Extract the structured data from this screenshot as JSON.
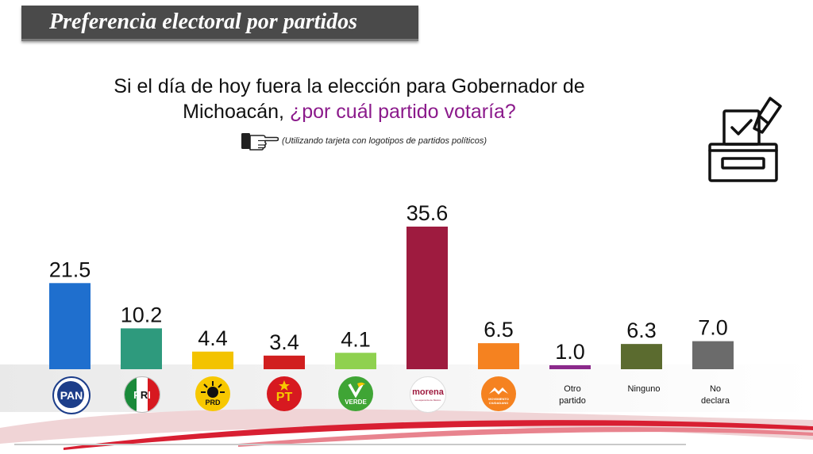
{
  "header": {
    "title": "Preferencia electoral  por partidos"
  },
  "question": {
    "part1": "Si el día de hoy fuera la elección para Gobernador de Michoacán, ",
    "part2": "¿por cuál partido votaría?",
    "note": "(Utilizando tarjeta con logotipos de partidos políticos)"
  },
  "icons": {
    "hand": "pointing-hand-icon",
    "ballot": "ballot-box-icon"
  },
  "chart_data": {
    "type": "bar",
    "categories": [
      "PAN",
      "PRI",
      "PRD",
      "PT",
      "VERDE",
      "morena",
      "MOVIMIENTO CIUDADANO",
      "Otro partido",
      "Ninguno",
      "No declara"
    ],
    "values": [
      21.5,
      10.2,
      4.4,
      3.4,
      4.1,
      35.6,
      6.5,
      1.0,
      6.3,
      7.0
    ],
    "value_labels": [
      "21.5",
      "10.2",
      "4.4",
      "3.4",
      "4.1",
      "35.6",
      "6.5",
      "1.0",
      "6.3",
      "7.0"
    ],
    "colors": [
      "#1f6fce",
      "#2e9a7d",
      "#f3c300",
      "#d11f1f",
      "#8fd14f",
      "#9e1b3f",
      "#f58220",
      "#8b2a8b",
      "#5b6b2f",
      "#6b6b6b"
    ],
    "grid": false,
    "legend": "none"
  },
  "logos": {
    "pan": "PAN",
    "pri_letters": [
      "P",
      "R",
      "I"
    ],
    "prd": "PRD",
    "pt": "PT",
    "verde": "VERDE",
    "morena": "morena",
    "morena_sub": "La esperanza de México",
    "mc": "MOVIMIENTO CIUDADANO"
  },
  "text_labels": {
    "otro_line1": "Otro",
    "otro_line2": "partido",
    "ninguno": "Ninguno",
    "no_declara_line1": "No",
    "no_declara_line2": "declara"
  }
}
